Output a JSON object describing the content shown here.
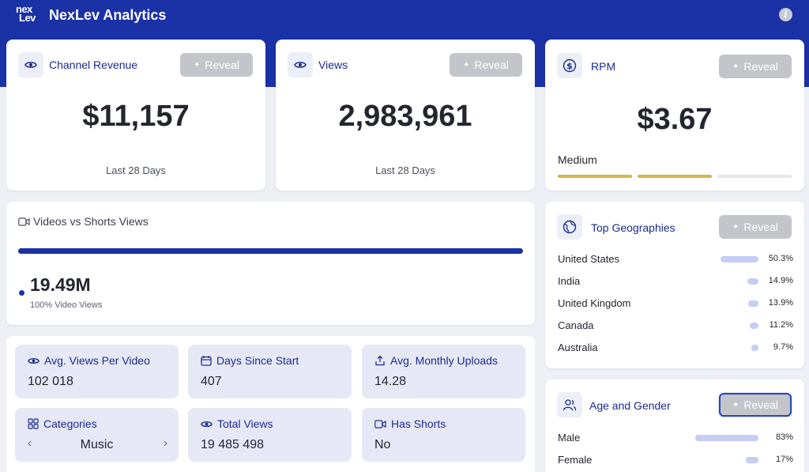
{
  "app": {
    "logo_top": "nex",
    "logo_bottom": "Lev",
    "title": "NexLev Analytics"
  },
  "reveal_label": "Reveal",
  "revenue": {
    "title": "Channel Revenue",
    "value": "$11,157",
    "period": "Last 28 Days"
  },
  "views": {
    "title": "Views",
    "value": "2,983,961",
    "period": "Last 28 Days"
  },
  "rpm": {
    "title": "RPM",
    "value": "$3.67",
    "level": "Medium",
    "level_fraction": 0.67,
    "colors": {
      "filled": "#d8b54a",
      "empty": "#e6e7ea"
    }
  },
  "videos_shorts": {
    "title": "Videos vs Shorts Views",
    "value": "19.49M",
    "caption": "100% Video Views",
    "video_fraction": 1.0,
    "color": "#1b31a6"
  },
  "geographies": {
    "title": "Top Geographies",
    "rows": [
      {
        "name": "United States",
        "pct": "50.3%",
        "value": 50.3
      },
      {
        "name": "India",
        "pct": "14.9%",
        "value": 14.9
      },
      {
        "name": "United Kingdom",
        "pct": "13.9%",
        "value": 13.9
      },
      {
        "name": "Canada",
        "pct": "11.2%",
        "value": 11.2
      },
      {
        "name": "Australia",
        "pct": "9.7%",
        "value": 9.7
      }
    ]
  },
  "age_gender": {
    "title": "Age and Gender",
    "rows": [
      {
        "name": "Male",
        "pct": "83%",
        "value": 83
      },
      {
        "name": "Female",
        "pct": "17%",
        "value": 17
      }
    ]
  },
  "stats": {
    "avg_views": {
      "label": "Avg. Views Per Video",
      "value": "102 018"
    },
    "days_since": {
      "label": "Days Since Start",
      "value": "407"
    },
    "avg_uploads": {
      "label": "Avg. Monthly Uploads",
      "value": "14.28"
    },
    "categories": {
      "label": "Categories",
      "value": "Music"
    },
    "total_views": {
      "label": "Total Views",
      "value": "19 485 498"
    },
    "has_shorts": {
      "label": "Has Shorts",
      "value": "No"
    }
  },
  "colors": {
    "brand": "#1b31a6",
    "accent_text": "#1b2a8f",
    "reveal_bg": "#c3c5ca"
  }
}
